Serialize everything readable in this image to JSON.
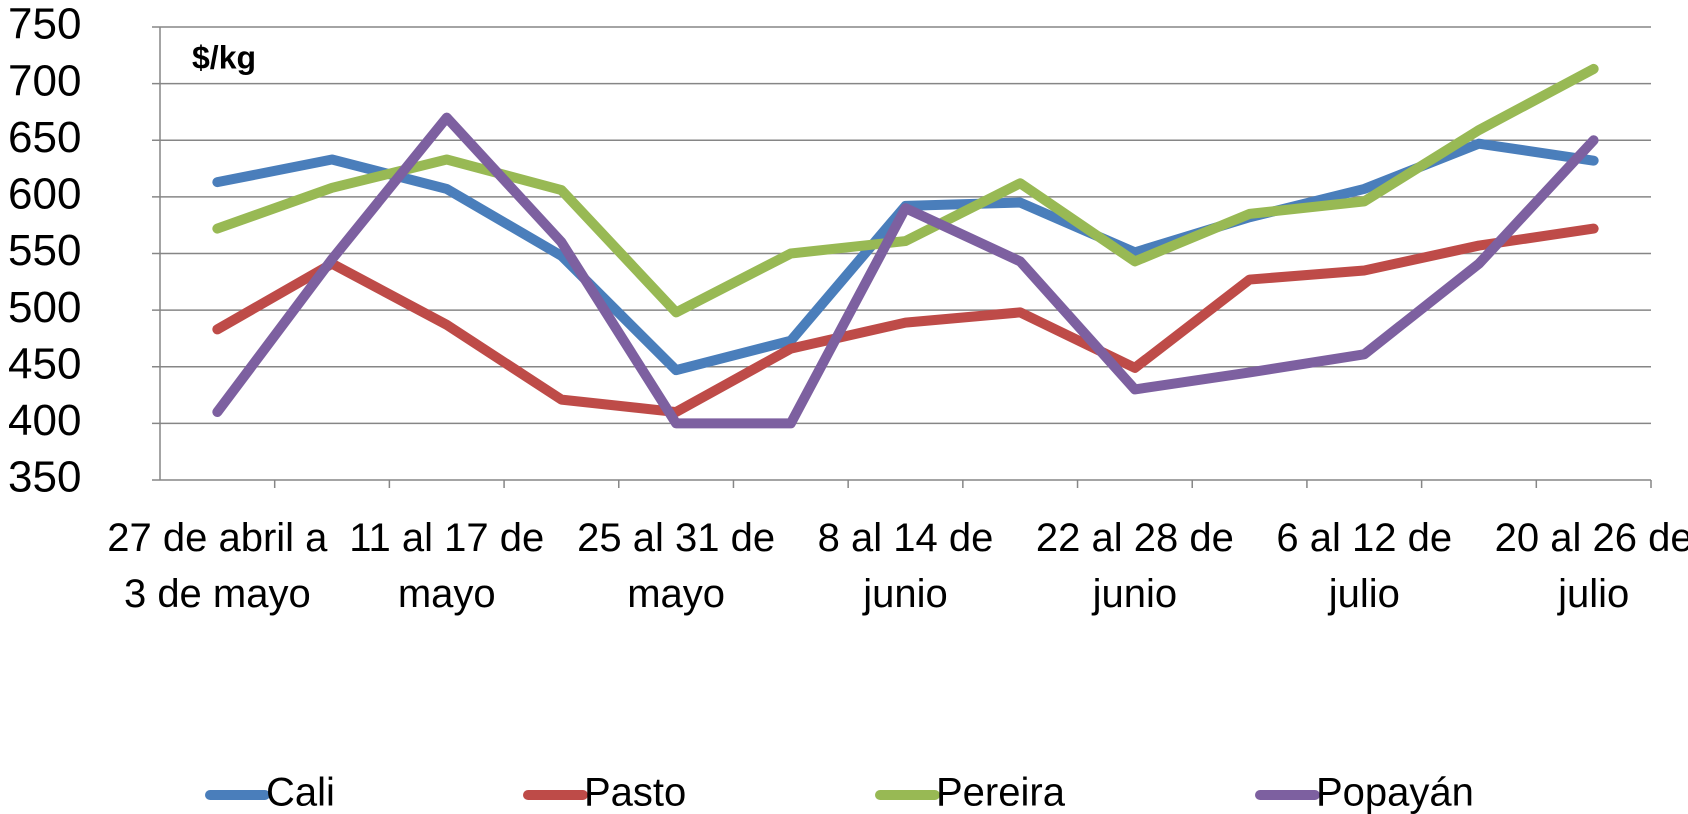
{
  "chart_data": {
    "type": "line",
    "annotation": "$/kg",
    "categories": [
      "27 de abril a 3 de mayo",
      null,
      "11 al 17 de mayo",
      null,
      "25 al 31 de mayo",
      null,
      "8 al 14 de junio",
      null,
      "22 al 28 de junio",
      null,
      "6 al 12 de julio",
      null,
      "20 al 26 de julio"
    ],
    "series": [
      {
        "name": "Cali",
        "color": "#4a7ebb",
        "values": [
          613,
          633,
          607,
          548,
          447,
          473,
          592,
          595,
          551,
          582,
          607,
          647,
          632
        ]
      },
      {
        "name": "Pasto",
        "color": "#be4b48",
        "values": [
          483,
          541,
          487,
          421,
          410,
          466,
          489,
          498,
          449,
          527,
          535,
          557,
          572
        ]
      },
      {
        "name": "Pereira",
        "color": "#98b954",
        "values": [
          572,
          608,
          633,
          606,
          498,
          550,
          561,
          612,
          543,
          585,
          596,
          659,
          713
        ]
      },
      {
        "name": "Popayán",
        "color": "#7d60a0",
        "values": [
          410,
          545,
          670,
          560,
          400,
          400,
          590,
          543,
          430,
          445,
          461,
          541,
          650
        ]
      }
    ],
    "ylim": [
      350,
      750
    ],
    "yticks": [
      350,
      400,
      450,
      500,
      550,
      600,
      650,
      700,
      750
    ],
    "grid": true,
    "legend": "bottom"
  }
}
